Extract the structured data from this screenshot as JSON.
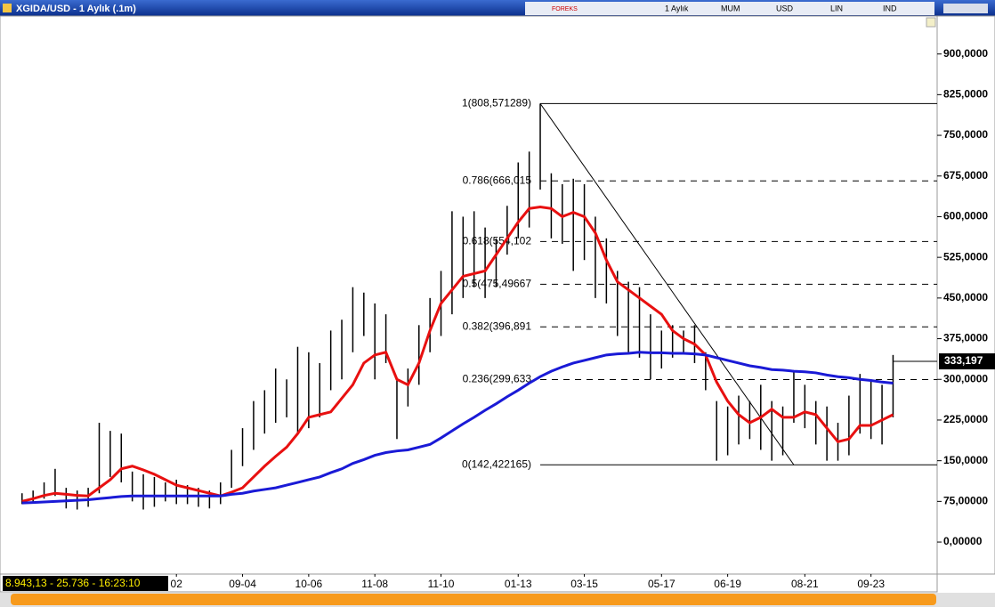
{
  "window": {
    "title": "XGIDA/USD - 1 Aylık (.1m)",
    "toolbar": [
      "1 Aylık",
      "MUM",
      "USD",
      "LIN",
      "IND"
    ],
    "status": "8.943,13 - 25.736 - 16:23:10"
  },
  "chart_data": {
    "type": "ohlc",
    "xlim": [
      -2,
      83
    ],
    "ylim": [
      -59,
      970
    ],
    "xticks": [
      {
        "value": 14,
        "label": "02"
      },
      {
        "value": 20,
        "label": "09-04"
      },
      {
        "value": 26,
        "label": "10-06"
      },
      {
        "value": 32,
        "label": "11-08"
      },
      {
        "value": 38,
        "label": "11-10"
      },
      {
        "value": 45,
        "label": "01-13"
      },
      {
        "value": 51,
        "label": "03-15"
      },
      {
        "value": 58,
        "label": "05-17"
      },
      {
        "value": 64,
        "label": "06-19"
      },
      {
        "value": 71,
        "label": "08-21"
      },
      {
        "value": 77,
        "label": "09-23"
      }
    ],
    "yticks": [
      {
        "value": 0,
        "label": "0,00000"
      },
      {
        "value": 75,
        "label": "75,00000"
      },
      {
        "value": 150,
        "label": "150,0000"
      },
      {
        "value": 225,
        "label": "225,0000"
      },
      {
        "value": 300,
        "label": "300,0000"
      },
      {
        "value": 375,
        "label": "375,0000"
      },
      {
        "value": 450,
        "label": "450,0000"
      },
      {
        "value": 525,
        "label": "525,0000"
      },
      {
        "value": 600,
        "label": "600,0000"
      },
      {
        "value": 675,
        "label": "675,0000"
      },
      {
        "value": 750,
        "label": "750,0000"
      },
      {
        "value": 825,
        "label": "825,0000"
      },
      {
        "value": 900,
        "label": "900,0000"
      }
    ],
    "bar_color": "#000000",
    "high": [
      90,
      95,
      110,
      135,
      100,
      95,
      100,
      220,
      205,
      200,
      130,
      125,
      120,
      110,
      115,
      105,
      100,
      95,
      110,
      170,
      210,
      260,
      280,
      320,
      300,
      360,
      350,
      330,
      390,
      410,
      470,
      460,
      440,
      420,
      300,
      320,
      400,
      450,
      500,
      610,
      600,
      610,
      580,
      560,
      620,
      700,
      720,
      808.571289,
      680,
      660,
      670,
      660,
      600,
      560,
      500,
      480,
      470,
      420,
      390,
      400,
      390,
      400,
      350,
      260,
      250,
      270,
      260,
      290,
      260,
      250,
      315,
      290,
      260,
      250,
      220,
      270,
      310,
      300,
      290,
      345
    ],
    "low": [
      70,
      72,
      80,
      85,
      62,
      60,
      65,
      90,
      120,
      110,
      75,
      60,
      65,
      75,
      70,
      70,
      65,
      62,
      70,
      100,
      140,
      170,
      200,
      220,
      230,
      200,
      210,
      230,
      280,
      300,
      350,
      380,
      300,
      330,
      190,
      250,
      290,
      350,
      380,
      420,
      450,
      470,
      450,
      470,
      530,
      560,
      580,
      650,
      560,
      550,
      500,
      520,
      450,
      440,
      380,
      350,
      340,
      300,
      320,
      340,
      350,
      330,
      280,
      150,
      160,
      180,
      190,
      170,
      150,
      160,
      220,
      210,
      180,
      150,
      150,
      160,
      200,
      190,
      180,
      230
    ],
    "series": [
      {
        "color": "#e81010",
        "values": [
          75,
          80,
          86,
          90,
          88,
          86,
          85,
          100,
          115,
          135,
          140,
          133,
          125,
          115,
          105,
          100,
          95,
          90,
          85,
          92,
          100,
          120,
          140,
          158,
          175,
          200,
          230,
          235,
          240,
          265,
          290,
          330,
          345,
          350,
          300,
          290,
          330,
          390,
          440,
          465,
          490,
          495,
          500,
          530,
          560,
          590,
          615,
          618,
          615,
          600,
          608,
          600,
          570,
          520,
          480,
          465,
          450,
          435,
          420,
          390,
          375,
          365,
          345,
          295,
          260,
          235,
          220,
          230,
          245,
          230,
          230,
          240,
          235,
          210,
          185,
          190,
          215,
          215,
          225,
          235
        ]
      },
      {
        "color": "#1a1ad6",
        "values": [
          72,
          73,
          74,
          75,
          76,
          77,
          78,
          80,
          82,
          84,
          85,
          85,
          85,
          85,
          85,
          85,
          85,
          85,
          85,
          88,
          90,
          94,
          97,
          100,
          105,
          110,
          115,
          120,
          128,
          135,
          145,
          152,
          160,
          165,
          168,
          170,
          175,
          180,
          192,
          205,
          218,
          230,
          243,
          255,
          268,
          280,
          293,
          305,
          315,
          323,
          330,
          335,
          340,
          345,
          347,
          348,
          350,
          349,
          349,
          348,
          348,
          347,
          345,
          340,
          335,
          330,
          325,
          322,
          318,
          317,
          315,
          314,
          312,
          308,
          305,
          303,
          300,
          298,
          295,
          293
        ]
      }
    ],
    "fibonacci": {
      "x": [
        47,
        83
      ],
      "levels": [
        808.571289,
        666.015,
        554.102,
        475.49667,
        396.891,
        299.633,
        142.422165
      ],
      "labels": [
        "1(808,571289)",
        "0.786(666,015",
        "0.618(554,102",
        "0.5(475,49667",
        "0.382(396,891",
        "0.236(299,633",
        "0(142,422165)"
      ]
    },
    "trendline_x": [
      47,
      70
    ],
    "last_price": 333.197,
    "last_price_label": "333,197"
  }
}
